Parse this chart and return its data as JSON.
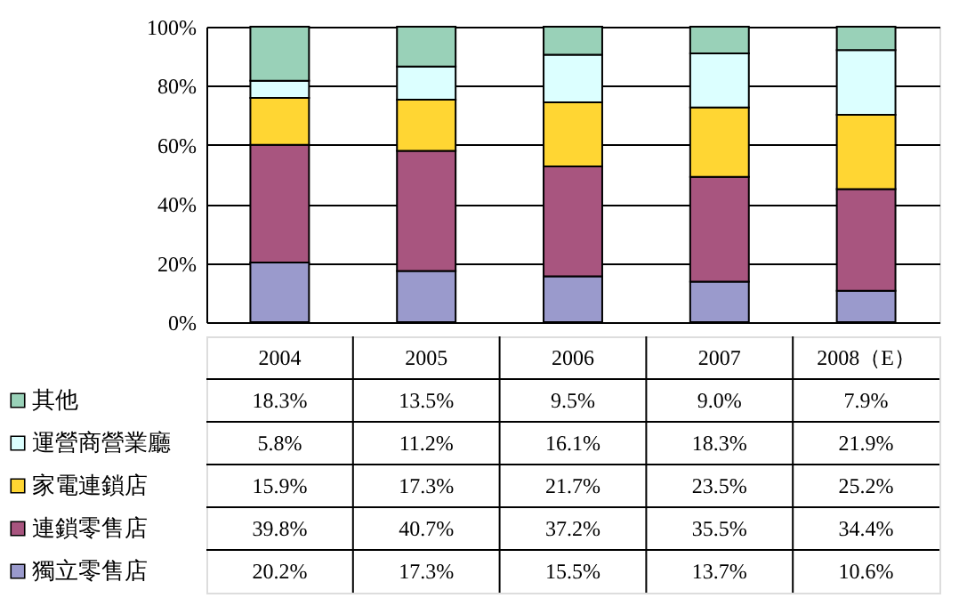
{
  "chart_data": {
    "type": "bar",
    "stacked": true,
    "categories": [
      "2004",
      "2005",
      "2006",
      "2007",
      "2008（E）"
    ],
    "series": [
      {
        "name": "獨立零售店",
        "color": "#9a9acc",
        "values": [
          20.2,
          17.3,
          15.5,
          13.7,
          10.6
        ],
        "value_labels": [
          "20.2%",
          "17.3%",
          "15.5%",
          "13.7%",
          "10.6%"
        ]
      },
      {
        "name": "連鎖零售店",
        "color": "#a8557f",
        "values": [
          39.8,
          40.7,
          37.2,
          35.5,
          34.4
        ],
        "value_labels": [
          "39.8%",
          "40.7%",
          "37.2%",
          "35.5%",
          "34.4%"
        ]
      },
      {
        "name": "家電連鎖店",
        "color": "#ffd633",
        "values": [
          15.9,
          17.3,
          21.7,
          23.5,
          25.2
        ],
        "value_labels": [
          "15.9%",
          "17.3%",
          "21.7%",
          "23.5%",
          "25.2%"
        ]
      },
      {
        "name": "運營商營業廳",
        "color": "#dcffff",
        "values": [
          5.8,
          11.2,
          16.1,
          18.3,
          21.9
        ],
        "value_labels": [
          "5.8%",
          "11.2%",
          "16.1%",
          "18.3%",
          "21.9%"
        ]
      },
      {
        "name": "其他",
        "color": "#99d1b8",
        "values": [
          18.3,
          13.5,
          9.5,
          9.0,
          7.9
        ],
        "value_labels": [
          "18.3%",
          "13.5%",
          "9.5%",
          "9.0%",
          "7.9%"
        ]
      }
    ],
    "ylim": [
      0,
      100
    ],
    "yticks": [
      {
        "value": 0,
        "label": "0%"
      },
      {
        "value": 20,
        "label": "20%"
      },
      {
        "value": 40,
        "label": "40%"
      },
      {
        "value": 60,
        "label": "60%"
      },
      {
        "value": 80,
        "label": "80%"
      },
      {
        "value": 100,
        "label": "100%"
      }
    ],
    "grid": "y",
    "legend": "bottom"
  }
}
